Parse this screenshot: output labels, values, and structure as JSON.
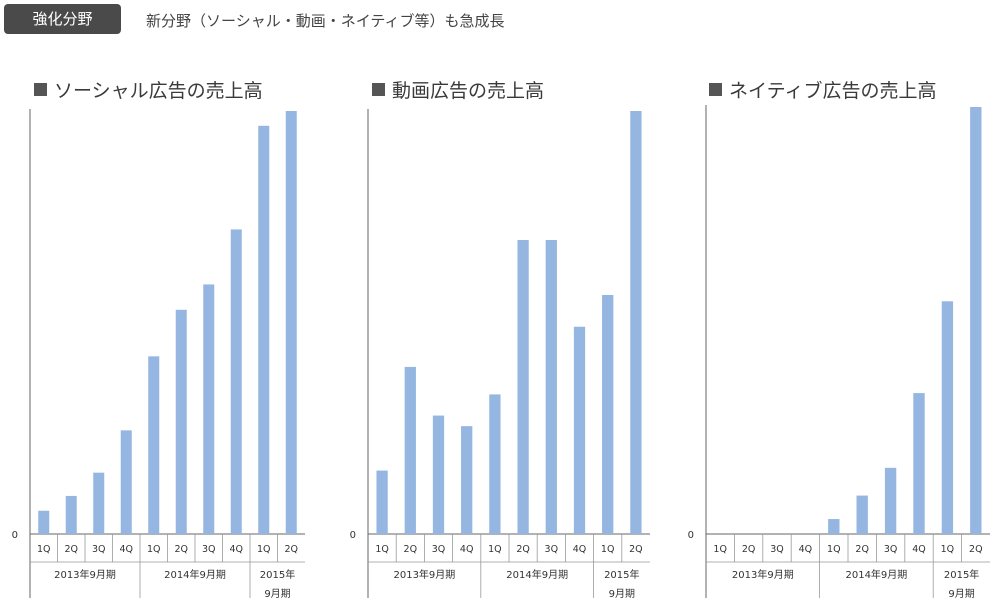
{
  "header": {
    "badge": "強化分野",
    "subtitle": "新分野（ソーシャル・動画・ネイティブ等）も急成長"
  },
  "colors": {
    "bar": "#95b6e1",
    "axis": "#666666",
    "badge_bg": "#4a4a4a"
  },
  "chart_data": [
    {
      "type": "bar",
      "title": "ソーシャル広告の売上高",
      "categories": [
        "1Q",
        "2Q",
        "3Q",
        "4Q",
        "1Q",
        "2Q",
        "3Q",
        "4Q",
        "1Q",
        "2Q"
      ],
      "groups": [
        {
          "label": "2013年9月期",
          "count": 4
        },
        {
          "label": "2014年9月期",
          "count": 4
        },
        {
          "label": "2015年\n9月期",
          "count": 2
        }
      ],
      "values": [
        5.5,
        9,
        14.5,
        24.5,
        42,
        53,
        59,
        72,
        96.5,
        100
      ],
      "ylim": [
        0,
        100
      ],
      "ytick_label": "0",
      "xlabel": "",
      "ylabel": ""
    },
    {
      "type": "bar",
      "title": "動画広告の売上高",
      "categories": [
        "1Q",
        "2Q",
        "3Q",
        "4Q",
        "1Q",
        "2Q",
        "3Q",
        "4Q",
        "1Q",
        "2Q"
      ],
      "groups": [
        {
          "label": "2013年9月期",
          "count": 4
        },
        {
          "label": "2014年9月期",
          "count": 4
        },
        {
          "label": "2015年\n9月期",
          "count": 2
        }
      ],
      "values": [
        15,
        39.5,
        28,
        25.5,
        33,
        69.5,
        69.5,
        49,
        56.5,
        100
      ],
      "ylim": [
        0,
        100
      ],
      "ytick_label": "0",
      "xlabel": "",
      "ylabel": ""
    },
    {
      "type": "bar",
      "title": "ネイティブ広告の売上高",
      "categories": [
        "1Q",
        "2Q",
        "3Q",
        "4Q",
        "1Q",
        "2Q",
        "3Q",
        "4Q",
        "1Q",
        "2Q"
      ],
      "groups": [
        {
          "label": "2013年9月期",
          "count": 4
        },
        {
          "label": "2014年9月期",
          "count": 4
        },
        {
          "label": "2015年\n9月期",
          "count": 2
        }
      ],
      "values": [
        0,
        0,
        0,
        0,
        3.5,
        9,
        15.5,
        33,
        54.5,
        100
      ],
      "ylim": [
        0,
        100
      ],
      "ytick_label": "0",
      "xlabel": "",
      "ylabel": ""
    }
  ]
}
